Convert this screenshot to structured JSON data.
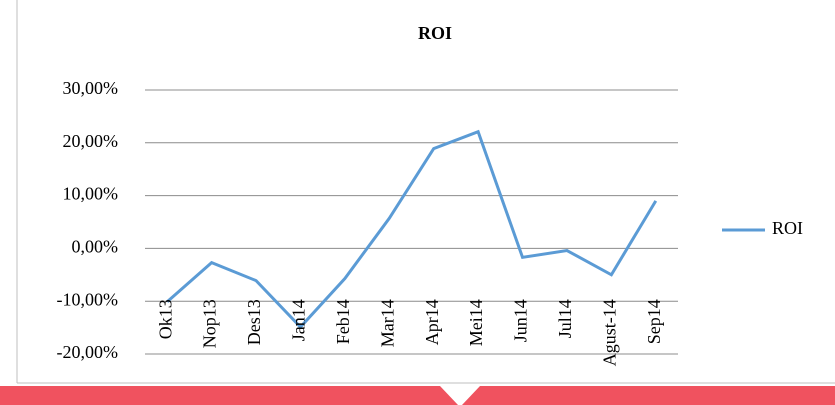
{
  "chart_data": {
    "type": "line",
    "title": "ROI",
    "categories": [
      "Ok13",
      "Nop13",
      "Des13",
      "Jan14",
      "Feb14",
      "Mar14",
      "Apr14",
      "Mei14",
      "Jun14",
      "Jul14",
      "Agust-14",
      "Sep14"
    ],
    "series": [
      {
        "name": "ROI",
        "color": "#5b9bd5",
        "values": [
          -10.1,
          -2.7,
          -6.1,
          -14.9,
          -5.7,
          5.7,
          18.9,
          22.1,
          -1.7,
          -0.4,
          -5.0,
          9.0
        ]
      }
    ],
    "ylim": [
      -20,
      30
    ],
    "yticks": [
      {
        "value": -20,
        "label": "-20,00%"
      },
      {
        "value": -10,
        "label": "-10,00%"
      },
      {
        "value": 0,
        "label": "0,00%"
      },
      {
        "value": 10,
        "label": "10,00%"
      },
      {
        "value": 20,
        "label": "20,00%"
      },
      {
        "value": 30,
        "label": "30,00%"
      }
    ],
    "grid": true,
    "legend": "right"
  }
}
